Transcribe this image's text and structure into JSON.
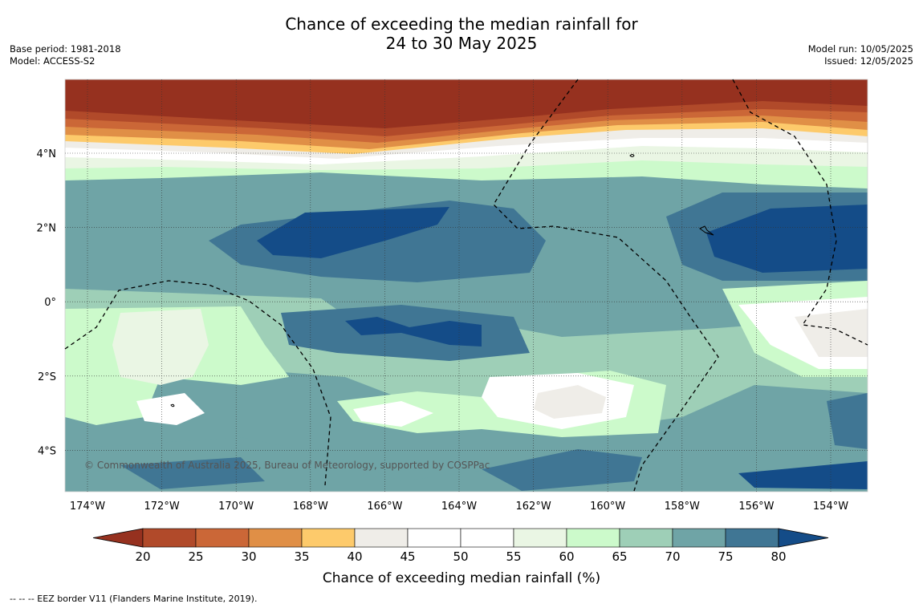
{
  "header": {
    "title_line1": "Chance of exceeding the median rainfall for",
    "title_line2": "24 to 30 May 2025",
    "base_period": "Base period: 1981-2018",
    "model": "Model: ACCESS-S2",
    "model_run": "Model run: 10/05/2025",
    "issued": "Issued: 12/05/2025"
  },
  "map": {
    "longitude_labels": [
      "174°W",
      "172°W",
      "170°W",
      "168°W",
      "166°W",
      "164°W",
      "162°W",
      "160°W",
      "158°W",
      "156°W",
      "154°W"
    ],
    "latitude_labels": [
      "4°N",
      "2°N",
      "0°",
      "2°S",
      "4°S"
    ],
    "copyright": "© Commonwealth of Australia 2025, Bureau of Meteorology, supported by COSPPac"
  },
  "colorbar": {
    "ticks": [
      "20",
      "25",
      "30",
      "35",
      "40",
      "45",
      "50",
      "55",
      "60",
      "65",
      "70",
      "75",
      "80"
    ],
    "colors": {
      "below20": "#96311f",
      "c20_25": "#b14a2a",
      "c25_30": "#cb6737",
      "c30_35": "#e08f46",
      "c35_40": "#fdca6b",
      "c40_45": "#efede8",
      "c45_50": "#ffffff",
      "c50_55": "#ffffff",
      "c55_60": "#eaf6e4",
      "c60_65": "#ccfacb",
      "c65_70": "#9ecfb7",
      "c70_75": "#6fa4a6",
      "c75_80": "#407694",
      "above80": "#144c88"
    },
    "title": "Chance of exceeding median rainfall (%)"
  },
  "footer": {
    "eez_note": "-- -- -- EEZ border V11 (Flanders Marine Institute, 2019)."
  }
}
